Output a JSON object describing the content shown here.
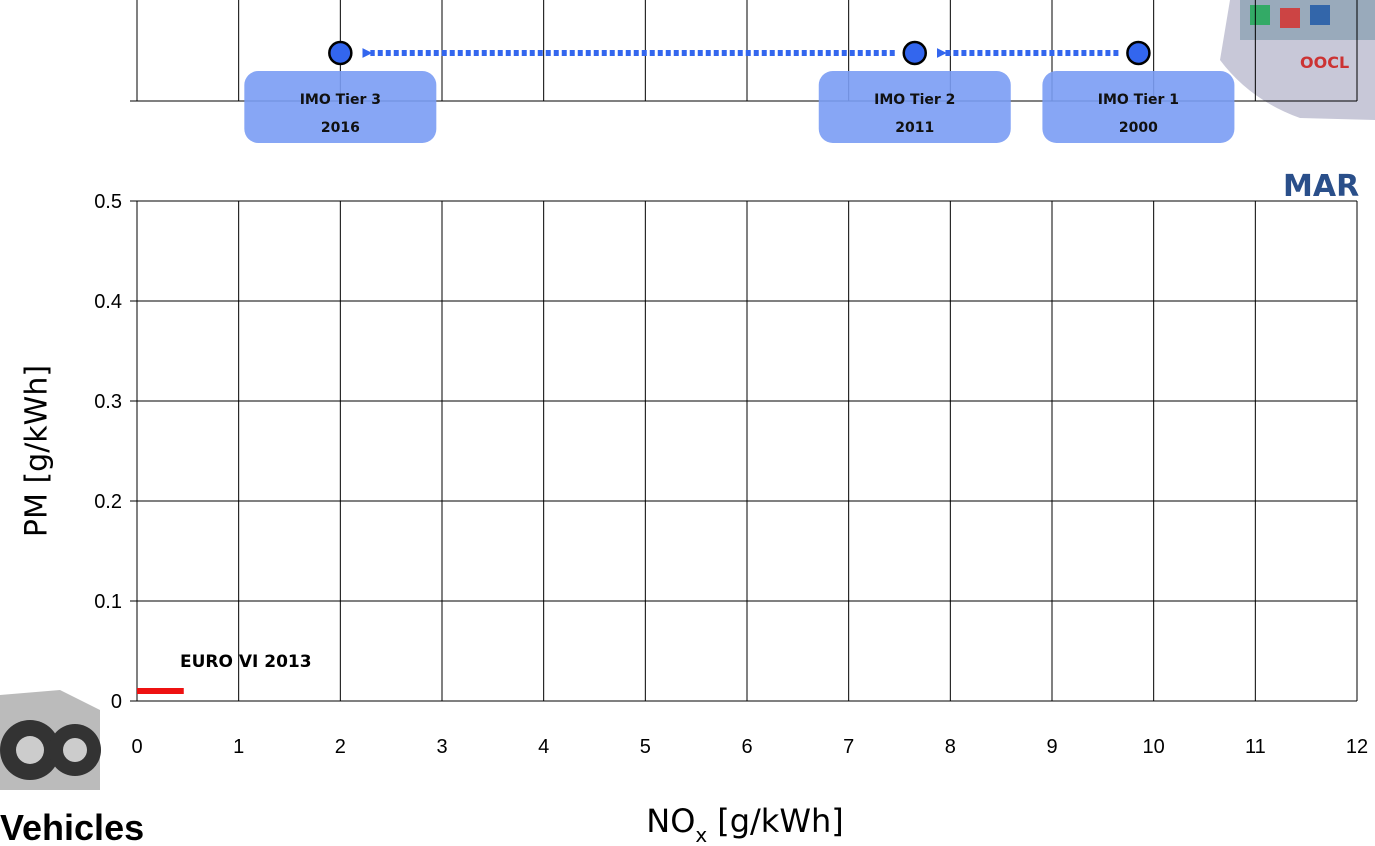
{
  "chart_data": {
    "type": "scatter",
    "x_label": {
      "main": "NO",
      "sub": "x",
      "unit": "[g/kWh]"
    },
    "y_label": "PM [g/kWh]",
    "xlim": [
      0,
      12
    ],
    "xticks": [
      0,
      1,
      2,
      3,
      4,
      5,
      6,
      7,
      8,
      9,
      10,
      11,
      12
    ],
    "ylim": [
      0,
      0.5
    ],
    "yticks": [
      0,
      0.1,
      0.2,
      0.3,
      0.4,
      0.5
    ],
    "grid": true,
    "imo": {
      "labels": [
        "IMO Tier 1",
        "IMO Tier 2",
        "IMO Tier 3"
      ],
      "years": [
        "2000",
        "2011",
        "2016"
      ],
      "x": [
        9.85,
        7.65,
        2
      ],
      "color": "#3366ee"
    },
    "euro": {
      "label": "EURO VI 2013",
      "x": [
        0,
        0.46
      ],
      "values": [
        0.01,
        0.01
      ],
      "color": "#ee1111"
    },
    "marine_label": "MAR",
    "vehicle_label": "Vehicles"
  }
}
